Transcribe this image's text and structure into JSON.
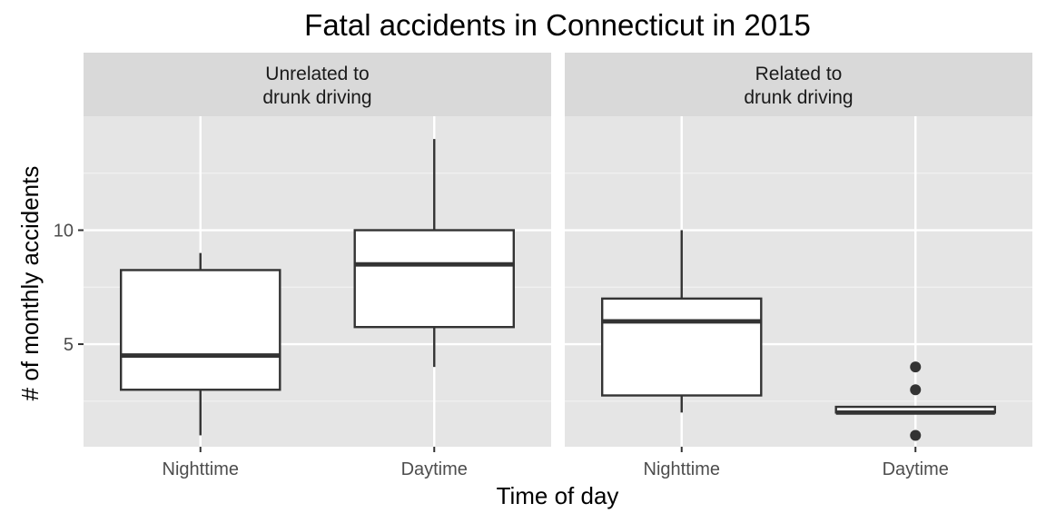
{
  "chart_data": {
    "type": "boxplot",
    "title": "Fatal accidents in Connecticut in 2015",
    "xlabel": "Time of day",
    "ylabel": "# of monthly accidents",
    "ylim": [
      0.5,
      15
    ],
    "y_ticks": [
      5,
      10
    ],
    "y_tick_labels": [
      "5",
      "10"
    ],
    "categories": [
      "Nighttime",
      "Daytime"
    ],
    "grid": true,
    "colors": {
      "panel_bg": "#e5e5e5",
      "strip_bg": "#d9d9d9",
      "grid": "#ffffff",
      "box_fill": "#ffffff",
      "box_line": "#333333",
      "text_tick": "#4d4d4d"
    },
    "facets": [
      {
        "label_lines": [
          "Unrelated to",
          "drunk driving"
        ],
        "boxes": [
          {
            "category": "Nighttime",
            "min": 1,
            "q1": 3,
            "median": 4.5,
            "q3": 8.25,
            "max": 9,
            "outliers": []
          },
          {
            "category": "Daytime",
            "min": 4,
            "q1": 5.75,
            "median": 8.5,
            "q3": 10,
            "max": 14,
            "outliers": []
          }
        ]
      },
      {
        "label_lines": [
          "Related to",
          "drunk driving"
        ],
        "boxes": [
          {
            "category": "Nighttime",
            "min": 2,
            "q1": 2.75,
            "median": 6,
            "q3": 7,
            "max": 10,
            "outliers": []
          },
          {
            "category": "Daytime",
            "min": 2,
            "q1": 2,
            "median": 2,
            "q3": 2.25,
            "max": 2.25,
            "outliers": [
              1,
              3,
              4
            ]
          }
        ]
      }
    ]
  }
}
